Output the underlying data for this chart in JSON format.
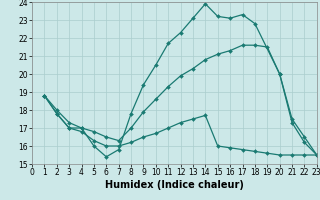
{
  "xlabel": "Humidex (Indice chaleur)",
  "bg_color": "#cce8e8",
  "grid_color": "#aacece",
  "line_color": "#1a7a72",
  "xlim": [
    0,
    23
  ],
  "ylim": [
    15,
    24
  ],
  "xticks": [
    0,
    1,
    2,
    3,
    4,
    5,
    6,
    7,
    8,
    9,
    10,
    11,
    12,
    13,
    14,
    15,
    16,
    17,
    18,
    19,
    20,
    21,
    22,
    23
  ],
  "yticks": [
    15,
    16,
    17,
    18,
    19,
    20,
    21,
    22,
    23,
    24
  ],
  "line1_x": [
    1,
    2,
    3,
    4,
    5,
    6,
    7,
    8,
    9,
    10,
    11,
    12,
    13,
    14,
    15,
    16,
    17,
    18,
    20,
    21,
    22,
    23
  ],
  "line1_y": [
    18.8,
    17.8,
    17.0,
    17.0,
    16.0,
    15.4,
    15.8,
    17.8,
    19.4,
    20.5,
    21.7,
    22.3,
    23.1,
    23.9,
    23.2,
    23.1,
    23.3,
    22.8,
    20.0,
    17.5,
    16.5,
    15.5
  ],
  "line2_x": [
    1,
    2,
    3,
    4,
    5,
    6,
    7,
    8,
    9,
    10,
    11,
    12,
    13,
    14,
    15,
    16,
    17,
    18,
    19,
    20,
    21,
    22,
    23
  ],
  "line2_y": [
    18.8,
    18.0,
    17.3,
    17.0,
    16.8,
    16.5,
    16.3,
    17.0,
    17.9,
    18.6,
    19.3,
    19.9,
    20.3,
    20.8,
    21.1,
    21.3,
    21.6,
    21.6,
    21.5,
    20.0,
    17.3,
    16.2,
    15.5
  ],
  "line3_x": [
    1,
    2,
    3,
    4,
    5,
    6,
    7,
    8,
    9,
    10,
    11,
    12,
    13,
    14,
    15,
    16,
    17,
    18,
    19,
    20,
    21,
    22,
    23
  ],
  "line3_y": [
    18.8,
    17.8,
    17.0,
    16.8,
    16.3,
    16.0,
    16.0,
    16.2,
    16.5,
    16.7,
    17.0,
    17.3,
    17.5,
    17.7,
    16.0,
    15.9,
    15.8,
    15.7,
    15.6,
    15.5,
    15.5,
    15.5,
    15.5
  ],
  "marker": "D",
  "markersize": 2.0,
  "linewidth": 0.9,
  "xlabel_fontsize": 7,
  "tick_fontsize": 5.5
}
